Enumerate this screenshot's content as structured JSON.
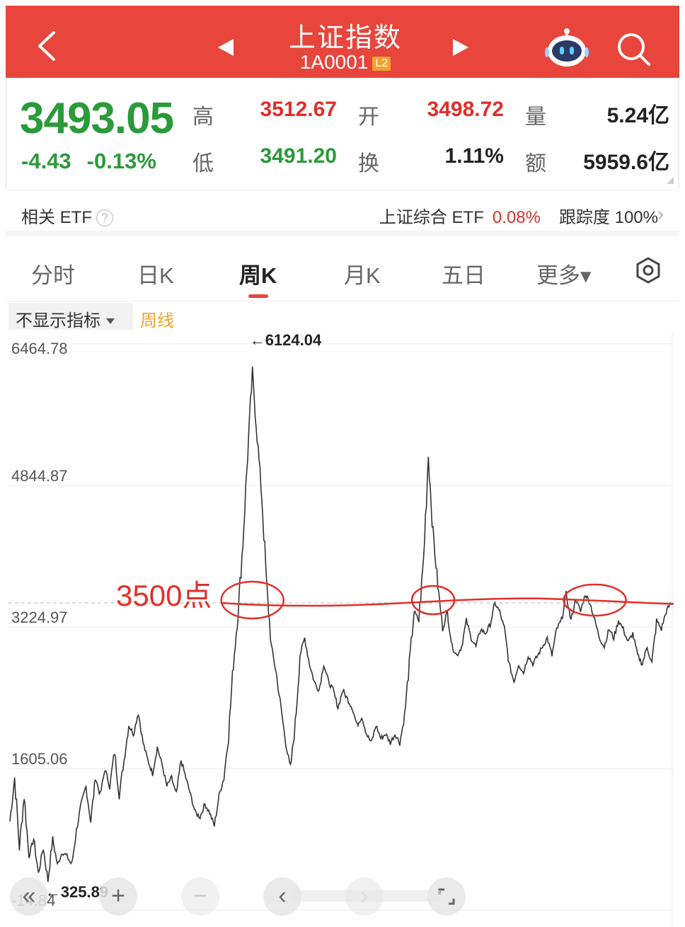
{
  "header": {
    "title": "上证指数",
    "code": "1A0001",
    "level_badge": "L2",
    "back_icon": "chevron-left-icon",
    "prev_icon": "triangle-left-icon",
    "next_icon": "triangle-right-icon",
    "assistant_icon": "robot-icon",
    "search_icon": "search-icon",
    "bg_color": "#e8453c"
  },
  "quote": {
    "price": "3493.05",
    "change": "-4.43",
    "change_pct": "-0.13%",
    "high_label": "高",
    "high": "3512.67",
    "low_label": "低",
    "low": "3491.20",
    "open_label": "开",
    "open": "3498.72",
    "turnover_label": "换",
    "turnover": "1.11%",
    "volume_label": "量",
    "volume": "5.24亿",
    "amount_label": "额",
    "amount": "5959.6亿",
    "down_color": "#2a9a3a",
    "up_color": "#e0302a"
  },
  "etf": {
    "label": "相关 ETF",
    "help": "?",
    "name": "上证综合 ETF",
    "pct": "0.08%",
    "tracking_label": "跟踪度",
    "tracking_value": "100%",
    "arrow": "›"
  },
  "tabs": [
    {
      "label": "分时"
    },
    {
      "label": "日K"
    },
    {
      "label": "周K"
    },
    {
      "label": "月K"
    },
    {
      "label": "五日"
    },
    {
      "label": "更多▾"
    }
  ],
  "indicator": {
    "select_label": "不显示指标",
    "line_label": "周线"
  },
  "chart_data": {
    "type": "line",
    "y_ticks": [
      "6464.78",
      "4844.87",
      "3224.97",
      "1605.06",
      "-14.84"
    ],
    "ylim": [
      -14.84,
      6464.78
    ],
    "max_annotation": "←6124.04",
    "min_annotation": "←325.89",
    "max_value": 6124.04,
    "min_value": 325.89,
    "annotation_text": "3500点",
    "annotation_level": 3500,
    "annotation_color": "#e0302a",
    "series": [
      {
        "values": [
          1000,
          1500,
          700,
          1300,
          600,
          800,
          400,
          700,
          326,
          800,
          500,
          650,
          600,
          500,
          900,
          1200,
          1400,
          1000,
          1500,
          1300,
          1600,
          1400,
          1800,
          1300,
          1700,
          2100,
          2000,
          2250,
          1900,
          1700,
          1550,
          1850,
          1650,
          1400,
          1500,
          1300,
          1700,
          1500,
          1300,
          1100,
          1050,
          1200,
          1100,
          950,
          1300,
          1500,
          2000,
          2800,
          3400,
          4200,
          5200,
          6124,
          5400,
          4700,
          3700,
          3000,
          2700,
          2300,
          1900,
          1600,
          2100,
          2900,
          3100,
          2800,
          2600,
          2500,
          2800,
          2600,
          2500,
          2300,
          2500,
          2400,
          2300,
          2100,
          2200,
          2000,
          1900,
          2100,
          1950,
          2000,
          1900,
          2000,
          1900,
          2200,
          2800,
          3400,
          3300,
          4000,
          5200,
          4300,
          3700,
          3200,
          3400,
          3000,
          2900,
          3000,
          3300,
          3100,
          3000,
          3200,
          3150,
          3250,
          3500,
          3400,
          3200,
          2800,
          2600,
          2800,
          2700,
          2900,
          2800,
          2900,
          3000,
          3100,
          2900,
          3200,
          3300,
          3600,
          3300,
          3550,
          3400,
          3600,
          3500,
          3300,
          3100,
          3000,
          3200,
          3100,
          3300,
          3200,
          3050,
          3150,
          2900,
          2800,
          3000,
          2800,
          3300,
          3200,
          3400,
          3500
        ]
      }
    ],
    "line_color": "#333333",
    "grid": true
  },
  "controls": {
    "first": "«",
    "zoom_in": "+",
    "zoom_out": "−",
    "left": "‹",
    "right": "›",
    "fullscreen_icon": "fullscreen-icon"
  }
}
